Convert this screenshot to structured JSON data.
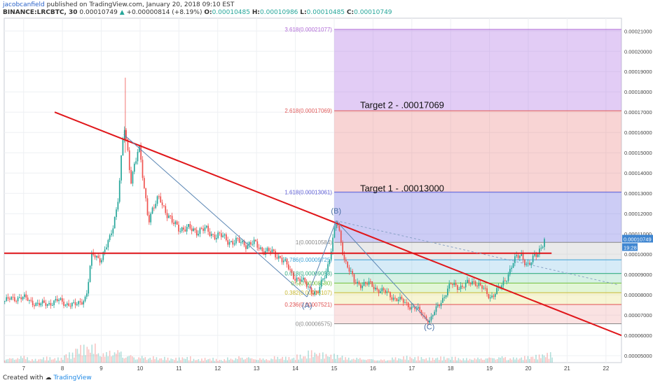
{
  "header": {
    "author": "jacobcanfield",
    "published": "published on TradingView.com, January 20, 2018 09:10 EST",
    "symbol_line": "BINANCE:LRCBTC, 30",
    "last": "0.00010749",
    "change_arrow": "▲",
    "change": "+0.00000814 (+8.19%)",
    "o_label": "O:",
    "o": "0.00010485",
    "h_label": "H:",
    "h": "0.00010986",
    "l_label": "L:",
    "l": "0.00010485",
    "c_label": "C:",
    "c": "0.00010749"
  },
  "footer": {
    "created_with": "Created with",
    "brand": "TradingView"
  },
  "colors": {
    "trend_red": "#e0161a",
    "candle_up": "#26a69a",
    "candle_down": "#ef5350",
    "wave_line": "#5b86b4",
    "price_tag": "#3f86d1"
  },
  "chart_data": {
    "type": "candlestick",
    "title": "BINANCE:LRCBTC, 30",
    "xlabel": "",
    "ylabel": "",
    "x_ticks": [
      "7",
      "8",
      "9",
      "10",
      "11",
      "12",
      "13",
      "14",
      "15",
      "16",
      "17",
      "18",
      "19",
      "20",
      "21",
      "22"
    ],
    "y_ticks": [
      "0.00005000",
      "0.00006000",
      "0.00007000",
      "0.00008000",
      "0.00009000",
      "0.00010000",
      "0.00011000",
      "0.00012000",
      "0.00013000",
      "0.00014000",
      "0.00015000",
      "0.00016000",
      "0.00017000",
      "0.00018000",
      "0.00019000",
      "0.00020000",
      "0.00021000"
    ],
    "ylim": [
      4.66e-05,
      0.0002163
    ],
    "xlim": [
      6.5,
      22.4
    ],
    "last_price_tag": "0.00010749",
    "countdown_tag": "19:28",
    "price_path": [
      {
        "x": 6.5,
        "y": 7.7e-05
      },
      {
        "x": 6.9,
        "y": 7.9e-05
      },
      {
        "x": 7.4,
        "y": 7.5e-05
      },
      {
        "x": 7.9,
        "y": 7.7e-05
      },
      {
        "x": 8.3,
        "y": 7.45e-05
      },
      {
        "x": 8.6,
        "y": 7.9e-05
      },
      {
        "x": 8.75,
        "y": 0.0001
      },
      {
        "x": 9.0,
        "y": 9.8e-05
      },
      {
        "x": 9.2,
        "y": 0.000107
      },
      {
        "x": 9.4,
        "y": 0.000125
      },
      {
        "x": 9.58,
        "y": 0.000162
      },
      {
        "x": 9.75,
        "y": 0.000138
      },
      {
        "x": 9.95,
        "y": 0.000152
      },
      {
        "x": 10.2,
        "y": 0.000118
      },
      {
        "x": 10.5,
        "y": 0.000128
      },
      {
        "x": 10.8,
        "y": 0.000115
      },
      {
        "x": 11.2,
        "y": 0.000112
      },
      {
        "x": 11.6,
        "y": 0.000112
      },
      {
        "x": 12.0,
        "y": 0.000109
      },
      {
        "x": 12.4,
        "y": 0.000106
      },
      {
        "x": 12.9,
        "y": 0.000105
      },
      {
        "x": 13.3,
        "y": 0.000101
      },
      {
        "x": 13.6,
        "y": 9.9e-05
      },
      {
        "x": 13.9,
        "y": 9e-05
      },
      {
        "x": 14.2,
        "y": 8.6e-05
      },
      {
        "x": 14.55,
        "y": 8e-05
      },
      {
        "x": 14.8,
        "y": 9.3e-05
      },
      {
        "x": 15.05,
        "y": 0.000116
      },
      {
        "x": 15.25,
        "y": 9.8e-05
      },
      {
        "x": 15.5,
        "y": 8.6e-05
      },
      {
        "x": 15.9,
        "y": 8.5e-05
      },
      {
        "x": 16.3,
        "y": 8.1e-05
      },
      {
        "x": 16.7,
        "y": 7.7e-05
      },
      {
        "x": 17.1,
        "y": 7.3e-05
      },
      {
        "x": 17.45,
        "y": 6.7e-05
      },
      {
        "x": 17.7,
        "y": 7.6e-05
      },
      {
        "x": 18.0,
        "y": 8.5e-05
      },
      {
        "x": 18.3,
        "y": 8.4e-05
      },
      {
        "x": 18.6,
        "y": 8.7e-05
      },
      {
        "x": 19.0,
        "y": 7.9e-05
      },
      {
        "x": 19.3,
        "y": 8.4e-05
      },
      {
        "x": 19.6,
        "y": 9.6e-05
      },
      {
        "x": 19.8,
        "y": 0.0001
      },
      {
        "x": 20.0,
        "y": 9.4e-05
      },
      {
        "x": 20.2,
        "y": 0.0001
      },
      {
        "x": 20.4,
        "y": 0.0001075
      }
    ],
    "volume_path": [
      0.3,
      0.4,
      0.2,
      0.3,
      0.25,
      0.5,
      0.9,
      1.0,
      0.6,
      0.8,
      0.5,
      0.4,
      0.35,
      0.3,
      0.25,
      0.3,
      0.2,
      0.25,
      0.2,
      0.3,
      0.4,
      0.3,
      0.25,
      0.35,
      0.3,
      0.4,
      0.6,
      0.5,
      0.45,
      0.3,
      0.3,
      0.25,
      0.2,
      0.3,
      0.35,
      0.3,
      0.25,
      0.3,
      0.3,
      0.25,
      0.3,
      0.35,
      0.4,
      0.3,
      0.35,
      0.4,
      0.5,
      0.6
    ],
    "fibonacci": {
      "x_start": 15.0,
      "levels": [
        {
          "label": "3.618(0.00021077)",
          "price": 0.00021077,
          "fill": "rgba(180,120,230,0.38)",
          "line": "#b06bd6"
        },
        {
          "label": "2.618(0.00017069)",
          "price": 0.00017069,
          "fill": "rgba(232,120,120,0.32)",
          "line": "#e05a5a"
        },
        {
          "label": "1.618(0.00013061)",
          "price": 0.00013061,
          "fill": "rgba(110,110,225,0.35)",
          "line": "#5d5dd6"
        },
        {
          "label": "1(0.00010584)",
          "price": 0.00010584,
          "fill": "rgba(170,170,170,0.25)",
          "line": "#888888"
        },
        {
          "label": "0.786(0.00009725)",
          "price": 9.725e-05,
          "fill": "rgba(120,190,230,0.30)",
          "line": "#3aa0d6"
        },
        {
          "label": "0.618(0.00009053)",
          "price": 9.053e-05,
          "fill": "rgba(120,210,170,0.30)",
          "line": "#2bab7d"
        },
        {
          "label": "0.5(0.00008580)",
          "price": 8.58e-05,
          "fill": "rgba(160,225,120,0.30)",
          "line": "#6fbf3a"
        },
        {
          "label": "0.382(0.00008107)",
          "price": 8.107e-05,
          "fill": "rgba(230,225,120,0.32)",
          "line": "#c8b830"
        },
        {
          "label": "0.236(0.00007521)",
          "price": 7.521e-05,
          "fill": "rgba(240,160,160,0.30)",
          "line": "#e05050"
        },
        {
          "label": "0(0.00006575)",
          "price": 6.575e-05,
          "fill": null,
          "line": "#888888"
        }
      ]
    },
    "annotations": [
      {
        "text": "Target 2 - .00017069",
        "x": 16.75,
        "y": 0.000172
      },
      {
        "text": "Target 1 - .00013000",
        "x": 16.75,
        "y": 0.000131
      },
      {
        "text": "(B)",
        "x": 15.05,
        "y": 0.00012
      },
      {
        "text": "(A)",
        "x": 14.3,
        "y": 7.35e-05
      },
      {
        "text": "(C)",
        "x": 17.45,
        "y": 6.3e-05
      }
    ],
    "lines": [
      {
        "name": "downtrend",
        "x1": 7.8,
        "y1": 0.00017,
        "x2": 22.4,
        "y2": 6e-05,
        "color": "#e0161a",
        "width": 2
      },
      {
        "name": "support",
        "x1": 6.5,
        "y1": 0.0001005,
        "x2": 20.6,
        "y2": 0.0001005,
        "color": "#e0161a",
        "width": 2
      },
      {
        "name": "wave-a",
        "x1": 9.58,
        "y1": 0.000159,
        "x2": 14.3,
        "y2": 7.9e-05,
        "color": "#5b86b4",
        "width": 1
      },
      {
        "name": "wave-b",
        "x1": 14.3,
        "y1": 7.9e-05,
        "x2": 15.05,
        "y2": 0.0001165,
        "color": "#5b86b4",
        "width": 1
      },
      {
        "name": "wave-c",
        "x1": 15.05,
        "y1": 0.0001165,
        "x2": 17.45,
        "y2": 6.65e-05,
        "color": "#5b86b4",
        "width": 1
      },
      {
        "name": "dashed-projection",
        "x1": 15.05,
        "y1": 0.0001165,
        "x2": 22.3,
        "y2": 8.5e-05,
        "color": "#8aa3c7",
        "width": 1,
        "dashed": true
      }
    ]
  }
}
